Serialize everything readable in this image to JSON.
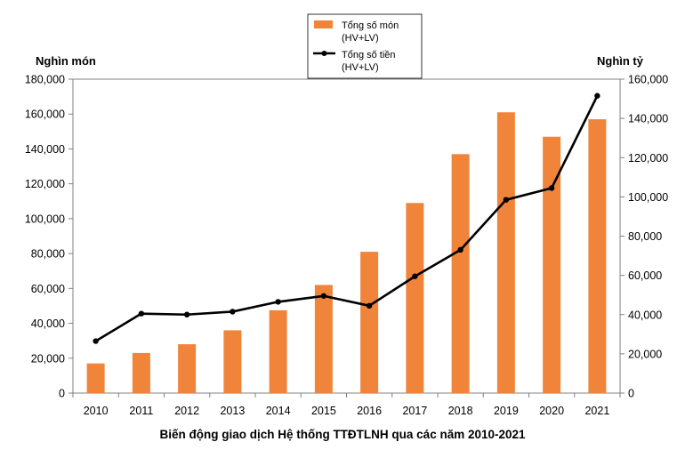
{
  "chart_data": {
    "type": "bar",
    "categories": [
      "2010",
      "2011",
      "2012",
      "2013",
      "2014",
      "2015",
      "2016",
      "2017",
      "2018",
      "2019",
      "2020",
      "2021"
    ],
    "series": [
      {
        "name": "Tổng số món (HV+LV)",
        "type": "bar",
        "axis": "left",
        "color": "#F0843A",
        "values": [
          17000,
          23000,
          28000,
          36000,
          47500,
          62000,
          81000,
          109000,
          137000,
          161000,
          147000,
          157000
        ]
      },
      {
        "name": "Tổng số tiền (HV+LV)",
        "type": "line",
        "axis": "right",
        "color": "#000000",
        "values": [
          26500,
          40500,
          40000,
          41500,
          46500,
          49500,
          44500,
          59500,
          73000,
          98500,
          104500,
          151500
        ]
      }
    ],
    "legend": {
      "placement": "top-center",
      "entries": [
        {
          "line1": "Tổng số món",
          "line2": "(HV+LV)"
        },
        {
          "line1": "Tổng số tiền",
          "line2": "(HV+LV)"
        }
      ]
    },
    "title": "",
    "xlabel": "Biến động giao dịch Hệ thống TTĐTLNH qua các năm 2010-2021",
    "ylabel_left": "Nghìn món",
    "ylabel_right": "Nghìn tỷ",
    "ylim_left": [
      0,
      180000
    ],
    "ylim_right": [
      0,
      160000
    ],
    "yticks_left": [
      "0",
      "20,000",
      "40,000",
      "60,000",
      "80,000",
      "100,000",
      "120,000",
      "140,000",
      "160,000",
      "180,000"
    ],
    "yticks_right": [
      "0",
      "20,000",
      "40,000",
      "60,000",
      "80,000",
      "100,000",
      "120,000",
      "140,000",
      "160,000"
    ],
    "grid": false
  }
}
